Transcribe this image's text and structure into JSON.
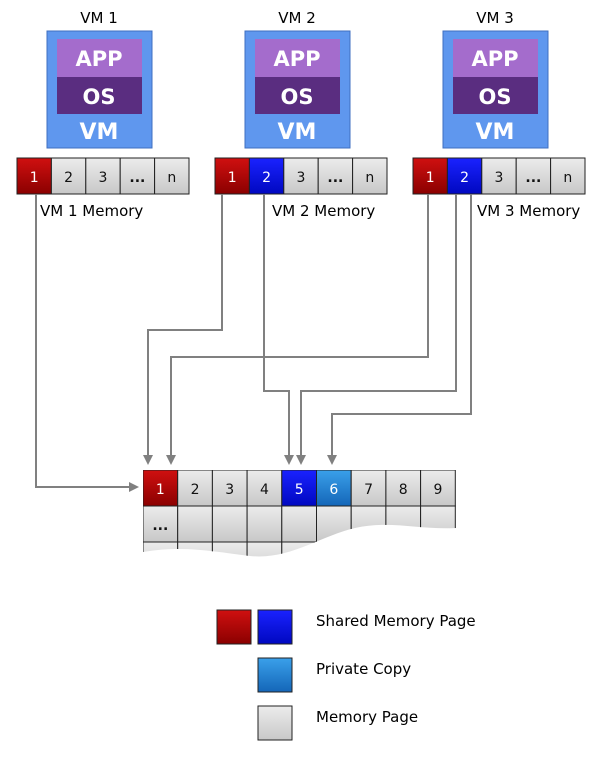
{
  "colors": {
    "shared": "#b20000",
    "shared2": "#0a10e8",
    "private": "#1f85d6",
    "page": "#dcdcdc",
    "vm_box": "#5f97ee",
    "app_band": "#a46ccc",
    "os_band": "#5a2d80",
    "arrow": "#808080"
  },
  "vms": [
    {
      "title": "VM 1",
      "app_label": "APP",
      "os_label": "OS",
      "vm_label": "VM",
      "memory_label": "VM 1 Memory",
      "pages": [
        {
          "label": "1",
          "type": "shared"
        },
        {
          "label": "2",
          "type": "page"
        },
        {
          "label": "3",
          "type": "page"
        },
        {
          "label": "...",
          "type": "page"
        },
        {
          "label": "n",
          "type": "page"
        }
      ]
    },
    {
      "title": "VM 2",
      "app_label": "APP",
      "os_label": "OS",
      "vm_label": "VM",
      "memory_label": "VM 2 Memory",
      "pages": [
        {
          "label": "1",
          "type": "shared"
        },
        {
          "label": "2",
          "type": "shared2"
        },
        {
          "label": "3",
          "type": "page"
        },
        {
          "label": "...",
          "type": "page"
        },
        {
          "label": "n",
          "type": "page"
        }
      ]
    },
    {
      "title": "VM 3",
      "app_label": "APP",
      "os_label": "OS",
      "vm_label": "VM",
      "memory_label": "VM 3 Memory",
      "pages": [
        {
          "label": "1",
          "type": "shared"
        },
        {
          "label": "2",
          "type": "shared2"
        },
        {
          "label": "3",
          "type": "page"
        },
        {
          "label": "...",
          "type": "page"
        },
        {
          "label": "n",
          "type": "page"
        }
      ]
    }
  ],
  "host_memory": {
    "row1": [
      {
        "label": "1",
        "type": "shared"
      },
      {
        "label": "2",
        "type": "page"
      },
      {
        "label": "3",
        "type": "page"
      },
      {
        "label": "4",
        "type": "page"
      },
      {
        "label": "5",
        "type": "shared2"
      },
      {
        "label": "6",
        "type": "private"
      },
      {
        "label": "7",
        "type": "page"
      },
      {
        "label": "8",
        "type": "page"
      },
      {
        "label": "9",
        "type": "page"
      }
    ],
    "row2_first": "..."
  },
  "legend": [
    {
      "text": "Shared Memory Page",
      "swatches": [
        "shared",
        "shared2"
      ]
    },
    {
      "text": "Private Copy",
      "swatches": [
        "private"
      ]
    },
    {
      "text": "Memory Page",
      "swatches": [
        "page"
      ]
    }
  ]
}
